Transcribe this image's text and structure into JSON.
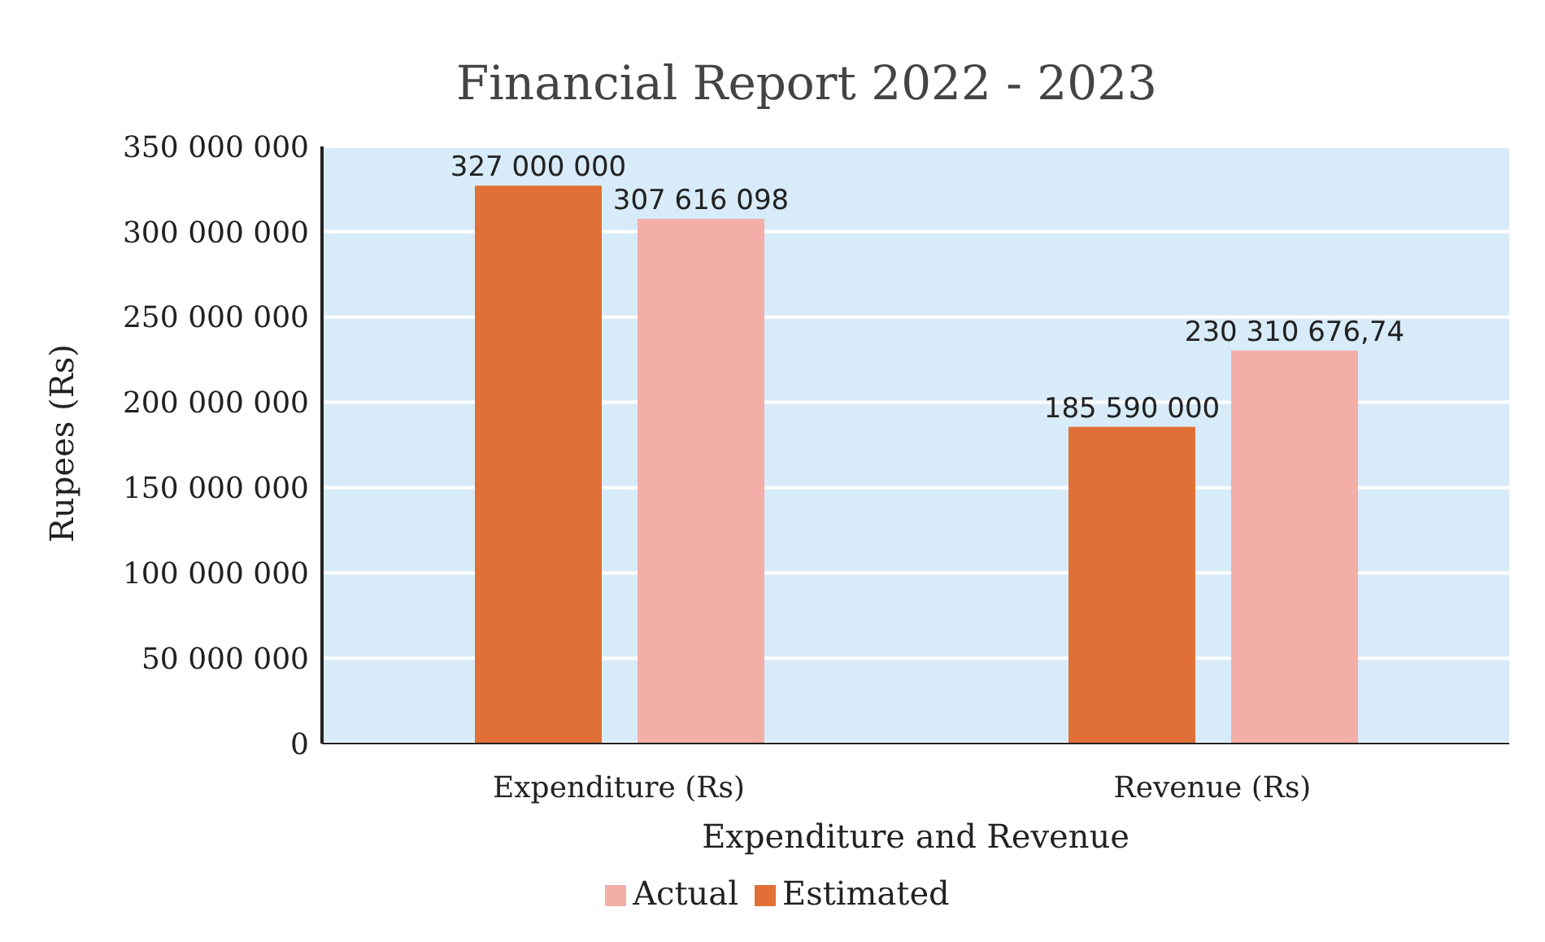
{
  "chart_data": {
    "type": "bar",
    "title": "Financial Report 2022 - 2023",
    "xlabel": "Expenditure and Revenue",
    "ylabel": "Rupees (Rs)",
    "categories": [
      "Expenditure (Rs)",
      "Revenue (Rs)"
    ],
    "series": [
      {
        "name": "Estimated",
        "color": "#e07035",
        "values": [
          327000000,
          185590000
        ],
        "value_labels": [
          "327 000 000",
          "185 590 000"
        ]
      },
      {
        "name": "Actual",
        "color": "#f4aea8",
        "values": [
          307616098,
          230310676.74
        ],
        "value_labels": [
          "307 616 098",
          "230 310 676,74"
        ]
      }
    ],
    "ylim": [
      0,
      350000000
    ],
    "yticks": [
      0,
      {
        "value": 50000000,
        "label": "50 000 000"
      },
      {
        "value": 100000000,
        "label": "100 000 000"
      },
      {
        "value": 150000000,
        "label": "150 000 000"
      },
      {
        "value": 200000000,
        "label": "200 000 000"
      },
      {
        "value": 250000000,
        "label": "250 000 000"
      },
      {
        "value": 300000000,
        "label": "300 000 000"
      },
      {
        "value": 350000000,
        "label": "350 000 000"
      }
    ],
    "grid": "y",
    "legend": "bottom"
  }
}
